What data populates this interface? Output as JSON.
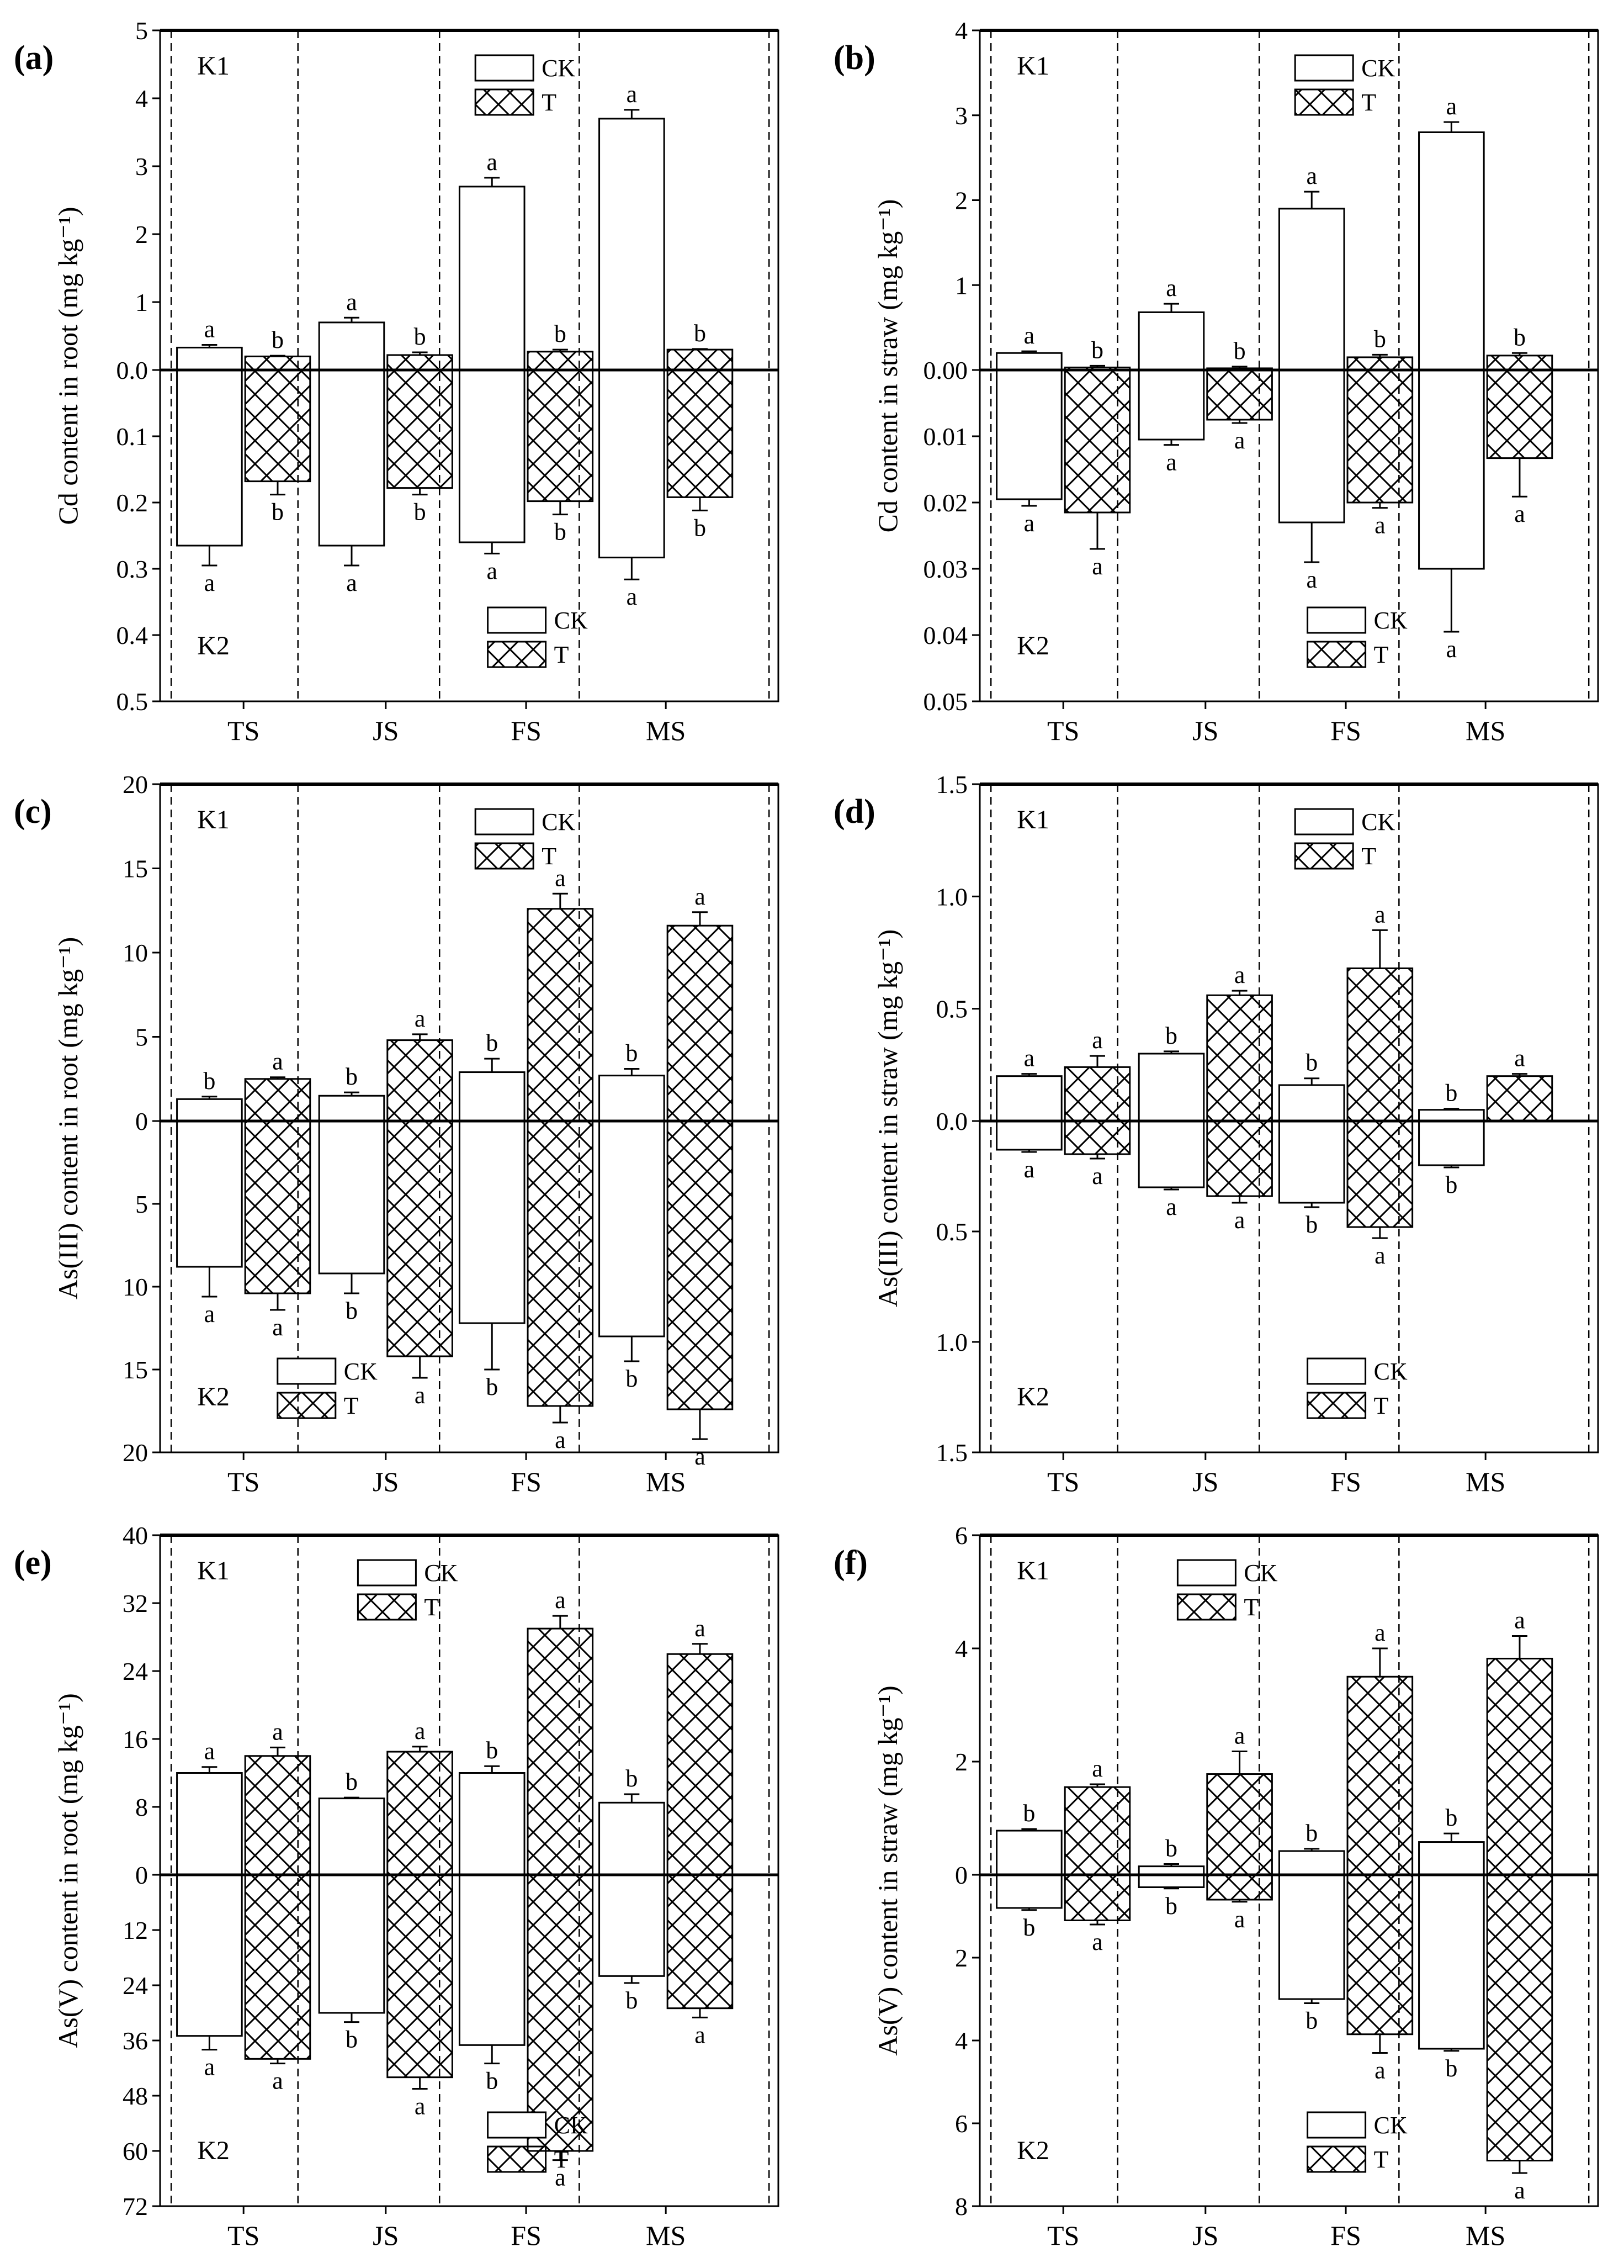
{
  "figure": {
    "categories": [
      "TS",
      "JS",
      "FS",
      "MS"
    ],
    "top_group_label": "K1",
    "bottom_group_label": "K2",
    "legend_labels": [
      "CK",
      "T"
    ]
  },
  "chart_data": [
    {
      "id": "a",
      "panel_label": "(a)",
      "type": "bar",
      "ylabel": "Cd content in root (mg kg⁻¹)",
      "top_ylim": [
        0,
        5
      ],
      "top_ticks": [
        "0.0",
        "1",
        "2",
        "3",
        "4",
        "5"
      ],
      "top_tick_values": [
        0,
        1,
        2,
        3,
        4,
        5
      ],
      "bottom_ylim": [
        0,
        0.5
      ],
      "bottom_ticks": [
        "0.1",
        "0.2",
        "0.3",
        "0.4",
        "0.5"
      ],
      "bottom_tick_values": [
        0.1,
        0.2,
        0.3,
        0.4,
        0.5
      ],
      "categories": [
        "TS",
        "JS",
        "FS",
        "MS"
      ],
      "series": [
        {
          "name": "CK",
          "k1": [
            0.33,
            0.7,
            2.7,
            3.7
          ],
          "k1_err": [
            0.04,
            0.07,
            0.13,
            0.13
          ],
          "k1_labels": [
            "a",
            "a",
            "a",
            "a"
          ],
          "k2": [
            0.265,
            0.265,
            0.26,
            0.283
          ],
          "k2_err": [
            0.03,
            0.03,
            0.017,
            0.033
          ],
          "k2_labels": [
            "a",
            "a",
            "a",
            "a"
          ]
        },
        {
          "name": "T",
          "k1": [
            0.2,
            0.22,
            0.27,
            0.3
          ],
          "k1_err": [
            0.01,
            0.04,
            0.03,
            0.01
          ],
          "k1_labels": [
            "b",
            "b",
            "b",
            "b"
          ],
          "k2": [
            0.168,
            0.178,
            0.198,
            0.192
          ],
          "k2_err": [
            0.02,
            0.01,
            0.02,
            0.02
          ],
          "k2_labels": [
            "b",
            "b",
            "b",
            "b"
          ]
        }
      ],
      "legends": [
        "top-right",
        "bottom-right"
      ]
    },
    {
      "id": "b",
      "panel_label": "(b)",
      "type": "bar",
      "ylabel": "Cd content in straw (mg kg⁻¹)",
      "top_ylim": [
        0,
        4
      ],
      "top_ticks": [
        "0.00",
        "1",
        "2",
        "3",
        "4"
      ],
      "top_tick_values": [
        0,
        1,
        2,
        3,
        4
      ],
      "bottom_ylim": [
        0,
        0.05
      ],
      "bottom_ticks": [
        "0.01",
        "0.02",
        "0.03",
        "0.04",
        "0.05"
      ],
      "bottom_tick_values": [
        0.01,
        0.02,
        0.03,
        0.04,
        0.05
      ],
      "categories": [
        "TS",
        "JS",
        "FS",
        "MS"
      ],
      "series": [
        {
          "name": "CK",
          "k1": [
            0.2,
            0.68,
            1.9,
            2.8
          ],
          "k1_err": [
            0.02,
            0.1,
            0.2,
            0.12
          ],
          "k1_labels": [
            "a",
            "a",
            "a",
            "a"
          ],
          "k2": [
            0.0195,
            0.0105,
            0.023,
            0.03
          ],
          "k2_err": [
            0.001,
            0.0008,
            0.006,
            0.0095
          ],
          "k2_labels": [
            "a",
            "a",
            "a",
            "a"
          ]
        },
        {
          "name": "T",
          "k1": [
            0.03,
            0.02,
            0.15,
            0.17
          ],
          "k1_err": [
            0.02,
            0.02,
            0.03,
            0.03
          ],
          "k1_labels": [
            "b",
            "b",
            "b",
            "b"
          ],
          "k2": [
            0.0215,
            0.0075,
            0.02,
            0.0133
          ],
          "k2_err": [
            0.0055,
            0.0005,
            0.0008,
            0.0058
          ],
          "k2_labels": [
            "a",
            "a",
            "a",
            "a"
          ]
        }
      ],
      "legends": [
        "top-right",
        "bottom-right"
      ]
    },
    {
      "id": "c",
      "panel_label": "(c)",
      "type": "bar",
      "ylabel": "As(III) content in root (mg kg⁻¹)",
      "top_ylim": [
        0,
        20
      ],
      "top_ticks": [
        "0",
        "5",
        "10",
        "15",
        "20"
      ],
      "top_tick_values": [
        0,
        5,
        10,
        15,
        20
      ],
      "bottom_ylim": [
        0,
        20
      ],
      "bottom_ticks": [
        "5",
        "10",
        "15",
        "20"
      ],
      "bottom_tick_values": [
        5,
        10,
        15,
        20
      ],
      "categories": [
        "TS",
        "JS",
        "FS",
        "MS"
      ],
      "series": [
        {
          "name": "CK",
          "k1": [
            1.3,
            1.5,
            2.9,
            2.7
          ],
          "k1_err": [
            0.15,
            0.2,
            0.8,
            0.4
          ],
          "k1_labels": [
            "b",
            "b",
            "b",
            "b"
          ],
          "k2": [
            8.8,
            9.2,
            12.2,
            13.0
          ],
          "k2_err": [
            1.8,
            1.2,
            2.8,
            1.5
          ],
          "k2_labels": [
            "a",
            "b",
            "b",
            "b"
          ]
        },
        {
          "name": "T",
          "k1": [
            2.5,
            4.8,
            12.6,
            11.6
          ],
          "k1_err": [
            0.1,
            0.35,
            0.9,
            0.8
          ],
          "k1_labels": [
            "a",
            "a",
            "a",
            "a"
          ],
          "k2": [
            10.4,
            14.2,
            17.2,
            17.4
          ],
          "k2_err": [
            1.0,
            1.3,
            1.0,
            1.8
          ],
          "k2_labels": [
            "a",
            "a",
            "a",
            "a"
          ]
        }
      ],
      "legends": [
        "top-right",
        "bottom-center"
      ]
    },
    {
      "id": "d",
      "panel_label": "(d)",
      "type": "bar",
      "ylabel": "As(III) content in straw (mg kg⁻¹)",
      "top_ylim": [
        0,
        1.5
      ],
      "top_ticks": [
        "0.0",
        "0.5",
        "1.0",
        "1.5"
      ],
      "top_tick_values": [
        0,
        0.5,
        1.0,
        1.5
      ],
      "bottom_ylim": [
        0,
        1.5
      ],
      "bottom_ticks": [
        "0.5",
        "1.0",
        "1.5"
      ],
      "bottom_tick_values": [
        0.5,
        1.0,
        1.5
      ],
      "categories": [
        "TS",
        "JS",
        "FS",
        "MS"
      ],
      "series": [
        {
          "name": "CK",
          "k1": [
            0.2,
            0.3,
            0.16,
            0.05
          ],
          "k1_err": [
            0.01,
            0.01,
            0.03,
            0.005
          ],
          "k1_labels": [
            "a",
            "b",
            "b",
            "b"
          ],
          "k2": [
            0.13,
            0.3,
            0.37,
            0.2
          ],
          "k2_err": [
            0.01,
            0.01,
            0.02,
            0.01
          ],
          "k2_labels": [
            "a",
            "a",
            "b",
            "b"
          ]
        },
        {
          "name": "T",
          "k1": [
            0.24,
            0.56,
            0.68,
            0.2
          ],
          "k1_err": [
            0.05,
            0.02,
            0.17,
            0.01
          ],
          "k1_labels": [
            "a",
            "a",
            "a",
            "a"
          ],
          "k2": [
            0.15,
            0.34,
            0.48,
            0.0
          ],
          "k2_err": [
            0.02,
            0.03,
            0.05,
            0.0
          ],
          "k2_labels": [
            "a",
            "a",
            "a",
            ""
          ]
        }
      ],
      "legends": [
        "top-right",
        "bottom-right"
      ]
    },
    {
      "id": "e",
      "panel_label": "(e)",
      "type": "bar",
      "ylabel": "As(V) content in root (mg kg⁻¹)",
      "top_ylim": [
        0,
        40
      ],
      "top_ticks": [
        "0",
        "8",
        "16",
        "24",
        "32",
        "40"
      ],
      "top_tick_values": [
        0,
        8,
        16,
        24,
        32,
        40
      ],
      "bottom_ylim": [
        0,
        72
      ],
      "bottom_ticks": [
        "12",
        "24",
        "36",
        "48",
        "60",
        "72"
      ],
      "bottom_tick_values": [
        12,
        24,
        36,
        48,
        60,
        72
      ],
      "categories": [
        "TS",
        "JS",
        "FS",
        "MS"
      ],
      "series": [
        {
          "name": "CK",
          "k1": [
            12.0,
            9.0,
            12.0,
            8.5
          ],
          "k1_err": [
            0.7,
            0.1,
            0.8,
            1.0
          ],
          "k1_labels": [
            "a",
            "b",
            "b",
            "b"
          ],
          "k2": [
            35.0,
            30.0,
            37.0,
            22.0
          ],
          "k2_err": [
            3.0,
            2.0,
            4.0,
            1.5
          ],
          "k2_labels": [
            "a",
            "b",
            "b",
            "b"
          ]
        },
        {
          "name": "T",
          "k1": [
            14.0,
            14.5,
            29.0,
            26.0
          ],
          "k1_err": [
            1.0,
            0.6,
            1.5,
            1.2
          ],
          "k1_labels": [
            "a",
            "a",
            "a",
            "a"
          ],
          "k2": [
            40.0,
            44.0,
            60.0,
            29.0
          ],
          "k2_err": [
            1.0,
            2.5,
            2.0,
            2.0
          ],
          "k2_labels": [
            "a",
            "a",
            "a",
            "a"
          ]
        }
      ],
      "legends": [
        "top-center",
        "bottom-right"
      ]
    },
    {
      "id": "f",
      "panel_label": "(f)",
      "type": "bar",
      "ylabel": "As(V) content in straw (mg kg⁻¹)",
      "top_ylim": [
        0,
        6
      ],
      "top_ticks": [
        "0",
        "2",
        "4",
        "6"
      ],
      "top_tick_values": [
        0,
        2,
        4,
        6
      ],
      "bottom_ylim": [
        0,
        8
      ],
      "bottom_ticks": [
        "2",
        "4",
        "6",
        "8"
      ],
      "bottom_tick_values": [
        2,
        4,
        6,
        8
      ],
      "categories": [
        "TS",
        "JS",
        "FS",
        "MS"
      ],
      "series": [
        {
          "name": "CK",
          "k1": [
            0.78,
            0.15,
            0.42,
            0.58
          ],
          "k1_err": [
            0.03,
            0.04,
            0.04,
            0.15
          ],
          "k1_labels": [
            "b",
            "b",
            "b",
            "b"
          ],
          "k2": [
            0.8,
            0.3,
            3.0,
            4.2
          ],
          "k2_err": [
            0.05,
            0.03,
            0.1,
            0.05
          ],
          "k2_labels": [
            "b",
            "b",
            "b",
            "b"
          ]
        },
        {
          "name": "T",
          "k1": [
            1.55,
            1.78,
            3.5,
            3.82
          ],
          "k1_err": [
            0.05,
            0.4,
            0.5,
            0.4
          ],
          "k1_labels": [
            "a",
            "a",
            "a",
            "a"
          ],
          "k2": [
            1.1,
            0.6,
            3.85,
            6.9
          ],
          "k2_err": [
            0.1,
            0.05,
            0.45,
            0.3
          ],
          "k2_labels": [
            "a",
            "a",
            "a",
            "a"
          ]
        }
      ],
      "legends": [
        "top-center",
        "bottom-right"
      ]
    }
  ]
}
